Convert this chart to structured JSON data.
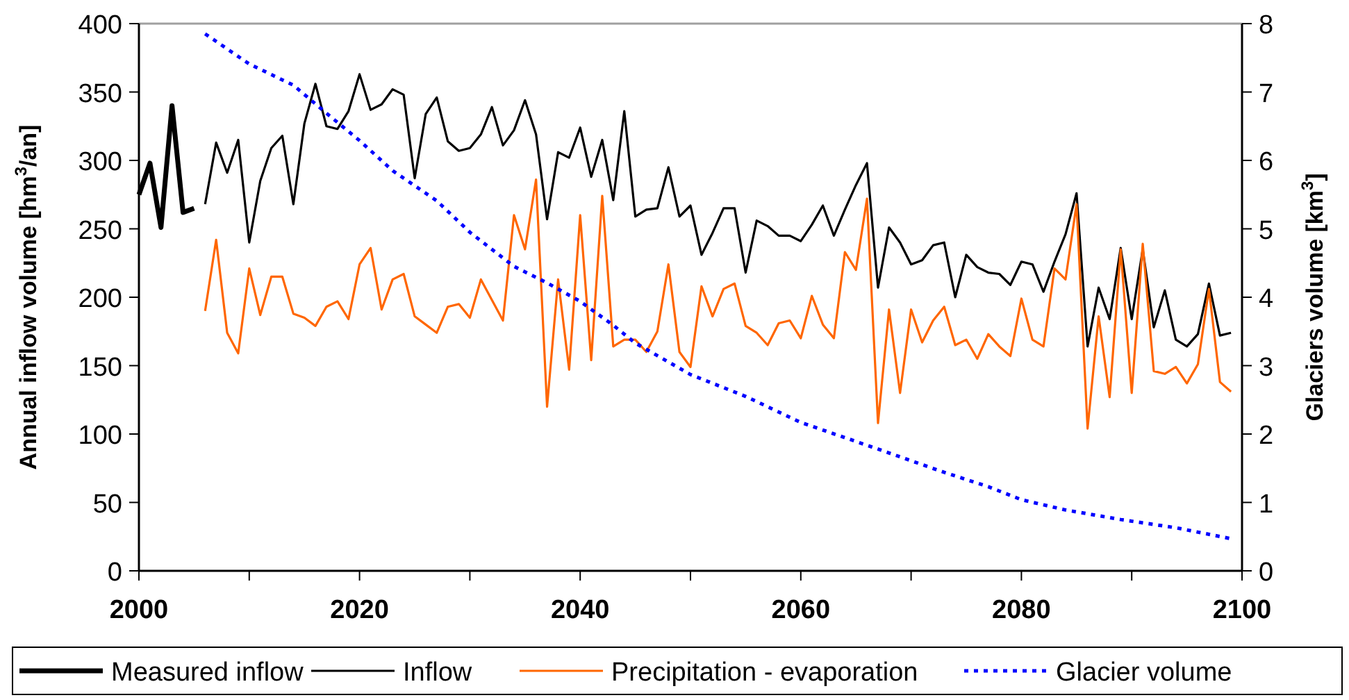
{
  "chart_data": {
    "type": "line",
    "ylabel": "Annual inflow volume [hm$^{3}$/an]",
    "y2label": "Glaciers volume [km$^{3}$]",
    "x": [
      2000,
      2001,
      2002,
      2003,
      2004,
      2005,
      2006,
      2007,
      2008,
      2009,
      2010,
      2011,
      2012,
      2013,
      2014,
      2015,
      2016,
      2017,
      2018,
      2019,
      2020,
      2021,
      2022,
      2023,
      2024,
      2025,
      2026,
      2027,
      2028,
      2029,
      2030,
      2031,
      2032,
      2033,
      2034,
      2035,
      2036,
      2037,
      2038,
      2039,
      2040,
      2041,
      2042,
      2043,
      2044,
      2045,
      2046,
      2047,
      2048,
      2049,
      2050,
      2051,
      2052,
      2053,
      2054,
      2055,
      2056,
      2057,
      2058,
      2059,
      2060,
      2061,
      2062,
      2063,
      2064,
      2065,
      2066,
      2067,
      2068,
      2069,
      2070,
      2071,
      2072,
      2073,
      2074,
      2075,
      2076,
      2077,
      2078,
      2079,
      2080,
      2081,
      2082,
      2083,
      2084,
      2085,
      2086,
      2087,
      2088,
      2089,
      2090,
      2091,
      2092,
      2093,
      2094,
      2095,
      2096,
      2097,
      2098,
      2099
    ],
    "series": [
      {
        "name": "Measured inflow",
        "color": "#000000",
        "values": [
          275,
          298,
          251,
          340,
          262,
          265,
          null,
          null,
          null,
          null,
          null,
          null,
          null,
          null,
          null,
          null,
          null,
          null,
          null,
          null,
          null,
          null,
          null,
          null,
          null,
          null,
          null,
          null,
          null,
          null,
          null,
          null,
          null,
          null,
          null,
          null,
          null,
          null,
          null,
          null,
          null,
          null,
          null,
          null,
          null,
          null,
          null,
          null,
          null,
          null,
          null,
          null,
          null,
          null,
          null,
          null,
          null,
          null,
          null,
          null,
          null,
          null,
          null,
          null,
          null,
          null,
          null,
          null,
          null,
          null,
          null,
          null,
          null,
          null,
          null,
          null,
          null,
          null,
          null,
          null,
          null,
          null,
          null,
          null,
          null,
          null,
          null,
          null,
          null,
          null,
          null,
          null,
          null,
          null,
          null,
          null,
          null,
          null,
          null,
          null
        ]
      },
      {
        "name": "Inflow",
        "color": "#000000",
        "values": [
          null,
          null,
          null,
          null,
          null,
          null,
          268,
          313,
          291,
          315,
          240,
          285,
          309,
          318,
          268,
          327,
          356,
          325,
          323,
          336,
          363,
          337,
          341,
          352,
          348,
          287,
          334,
          346,
          314,
          307,
          309,
          319,
          339,
          311,
          322,
          344,
          319,
          257,
          306,
          302,
          324,
          288,
          315,
          271,
          336,
          259,
          264,
          265,
          295,
          259,
          267,
          231,
          247,
          265,
          265,
          218,
          256,
          252,
          245,
          245,
          241,
          253,
          267,
          245,
          264,
          282,
          298,
          207,
          251,
          240,
          224,
          227,
          238,
          240,
          200,
          231,
          222,
          218,
          217,
          209,
          226,
          224,
          204,
          226,
          246,
          276,
          164,
          207,
          184,
          236,
          184,
          235,
          178,
          205,
          169,
          164,
          173,
          210,
          172,
          174
        ]
      },
      {
        "name": "Precipitation - evaporation",
        "color": "#ff6600",
        "values": [
          null,
          null,
          null,
          null,
          null,
          null,
          190,
          242,
          174,
          159,
          221,
          187,
          215,
          215,
          188,
          185,
          179,
          193,
          197,
          184,
          224,
          236,
          191,
          213,
          217,
          186,
          180,
          174,
          193,
          195,
          185,
          213,
          198,
          183,
          260,
          235,
          286,
          120,
          213,
          147,
          260,
          154,
          274,
          164,
          169,
          169,
          160,
          175,
          224,
          160,
          149,
          208,
          186,
          206,
          210,
          179,
          174,
          165,
          181,
          183,
          170,
          201,
          180,
          170,
          233,
          220,
          272,
          108,
          191,
          130,
          191,
          167,
          183,
          193,
          165,
          169,
          155,
          173,
          164,
          157,
          199,
          169,
          164,
          221,
          213,
          268,
          104,
          186,
          127,
          235,
          130,
          239,
          146,
          144,
          149,
          137,
          151,
          206,
          138,
          131
        ]
      },
      {
        "name": "Glacier volume",
        "color": "#0000ff",
        "axis": "y2",
        "line_style": "dotted",
        "x": [
          2006,
          2010,
          2014,
          2017,
          2020,
          2023,
          2027,
          2030,
          2034,
          2037,
          2040,
          2043,
          2045,
          2050,
          2055,
          2060,
          2067,
          2073,
          2077,
          2080,
          2084,
          2089,
          2094,
          2099
        ],
        "values": [
          7.85,
          7.41,
          7.1,
          6.69,
          6.29,
          5.85,
          5.41,
          4.95,
          4.45,
          4.21,
          3.94,
          3.59,
          3.33,
          2.87,
          2.55,
          2.17,
          1.78,
          1.44,
          1.23,
          1.04,
          0.89,
          0.75,
          0.63,
          0.47
        ]
      }
    ],
    "xlim": [
      2000,
      2100
    ],
    "xticks": [
      2000,
      {
        "value": 2010,
        "label": null
      },
      2020,
      {
        "value": 2030,
        "label": null
      },
      2040,
      {
        "value": 2050,
        "label": null
      },
      2060,
      {
        "value": 2070,
        "label": null
      },
      2080,
      {
        "value": 2090,
        "label": null
      },
      2100
    ],
    "ylim": [
      0,
      400
    ],
    "yticks": [
      0,
      50,
      100,
      150,
      200,
      250,
      300,
      350,
      400
    ],
    "y2lim": [
      0,
      8
    ],
    "y2ticks": [
      0,
      1,
      2,
      3,
      4,
      5,
      6,
      7,
      8
    ],
    "legend": "bottom",
    "grid": false,
    "marker": "none",
    "line_style": "solid"
  }
}
